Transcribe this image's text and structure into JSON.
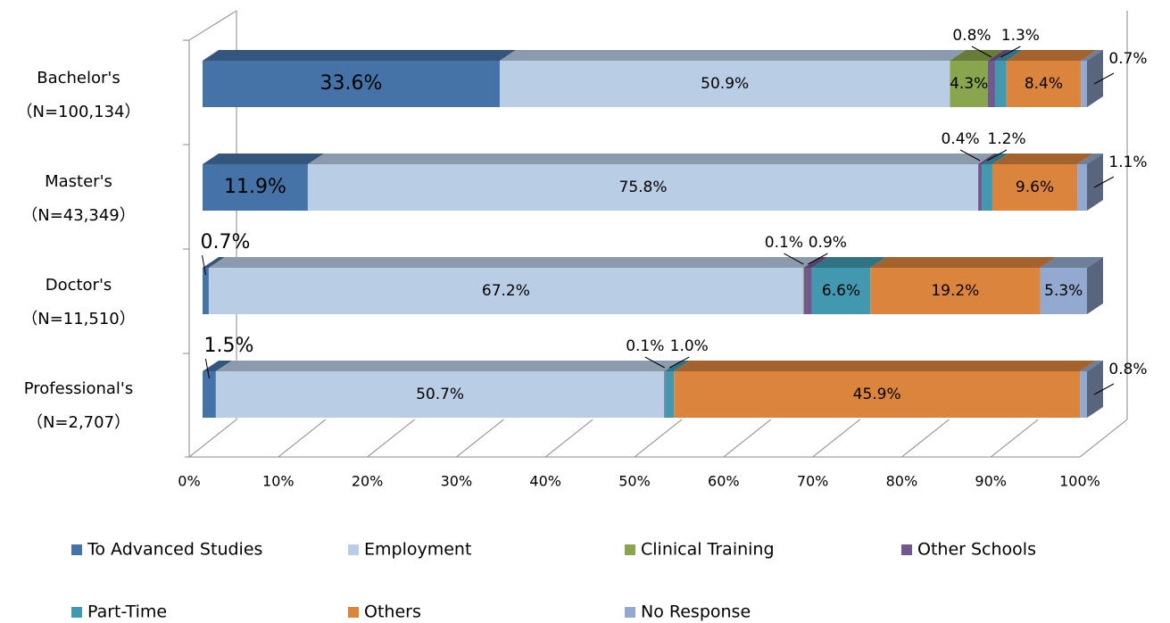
{
  "chart_data": {
    "type": "stacked_bar_3d_horizontal",
    "categories": [
      [
        "Bachelor's",
        "（N=100,134）"
      ],
      [
        "Master's",
        "（N=43,349）"
      ],
      [
        "Doctor's",
        "（N=11,510）"
      ],
      [
        "Professional's",
        "（N=2,707）"
      ]
    ],
    "series": [
      {
        "name": "To Advanced Studies",
        "color": "#4573a7",
        "values": [
          33.6,
          11.9,
          0.7,
          1.5
        ],
        "value_labels": [
          "33.6%",
          "11.9%",
          "0.7%",
          "1.5%"
        ]
      },
      {
        "name": "Employment",
        "color": "#b9cde5",
        "values": [
          50.9,
          75.8,
          67.2,
          50.7
        ],
        "value_labels": [
          "50.9%",
          "75.8%",
          "67.2%",
          "50.7%"
        ]
      },
      {
        "name": "Clinical Training",
        "color": "#89a54e",
        "values": [
          4.3,
          0,
          0.1,
          0
        ],
        "value_labels": [
          "4.3%",
          null,
          "0.1%",
          null
        ]
      },
      {
        "name": "Other Schools",
        "color": "#71588f",
        "values": [
          0.8,
          0.4,
          0.9,
          0.1
        ],
        "value_labels": [
          "0.8%",
          "0.4%",
          "0.9%",
          "0.1%"
        ]
      },
      {
        "name": "Part-Time",
        "color": "#4198af",
        "values": [
          1.3,
          1.2,
          6.6,
          1.0
        ],
        "value_labels": [
          "1.3%",
          "1.2%",
          "6.6%",
          "1.0%"
        ]
      },
      {
        "name": "Others",
        "color": "#db843d",
        "values": [
          8.4,
          9.6,
          19.2,
          45.9
        ],
        "value_labels": [
          "8.4%",
          "9.6%",
          "19.2%",
          "45.9%"
        ]
      },
      {
        "name": "No Response",
        "color": "#93a9cf",
        "values": [
          0.7,
          1.1,
          5.3,
          0.8
        ],
        "value_labels": [
          "0.7%",
          "1.1%",
          "5.3%",
          "0.8%"
        ]
      }
    ],
    "xlim": [
      0,
      100
    ],
    "xticks": [
      {
        "value": 0,
        "label": "0%"
      },
      {
        "value": 10,
        "label": "10%"
      },
      {
        "value": 20,
        "label": "20%"
      },
      {
        "value": 30,
        "label": "30%"
      },
      {
        "value": 40,
        "label": "40%"
      },
      {
        "value": 50,
        "label": "50%"
      },
      {
        "value": 60,
        "label": "60%"
      },
      {
        "value": 70,
        "label": "70%"
      },
      {
        "value": 80,
        "label": "80%"
      },
      {
        "value": 90,
        "label": "90%"
      },
      {
        "value": 100,
        "label": "100%"
      }
    ],
    "legend": "bottom"
  }
}
